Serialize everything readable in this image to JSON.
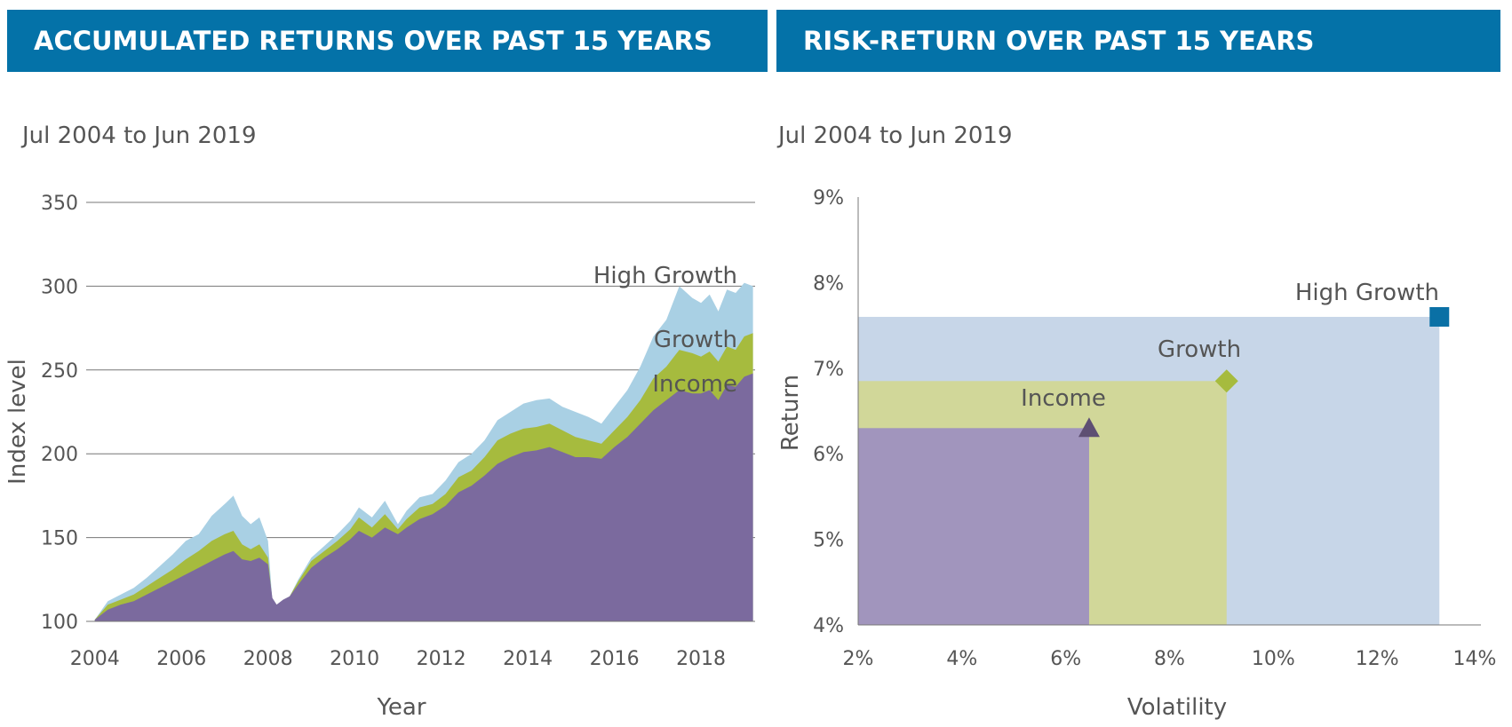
{
  "left_panel": {
    "header": "ACCUMULATED RETURNS OVER PAST 15 YEARS",
    "subtitle": "Jul 2004 to Jun 2019"
  },
  "right_panel": {
    "header": "RISK-RETURN OVER PAST 15 YEARS",
    "subtitle": "Jul 2004 to Jun 2019"
  },
  "colors": {
    "header_bg": "#0472a8",
    "high_growth_area": "#a9d0e4",
    "growth_area": "#a6bb3e",
    "income_area": "#7b6a9e",
    "hg_rect": "#c7d6e8",
    "growth_rect": "#d1d799",
    "income_rect": "#a195bd",
    "hg_marker": "#0a70a5",
    "growth_marker": "#a6bb3e",
    "income_marker": "#5e4f73"
  },
  "chart_data": [
    {
      "type": "area",
      "title": "ACCUMULATED RETURNS OVER PAST 15 YEARS",
      "subtitle": "Jul 2004 to Jun 2019",
      "xlabel": "Year",
      "ylabel": "Index level",
      "xlim": [
        2003.8,
        2019.25
      ],
      "ylim": [
        100,
        350
      ],
      "x_ticks": [
        "2004",
        "2006",
        "2008",
        "2010",
        "2012",
        "2014",
        "2016",
        "2018"
      ],
      "y_ticks": [
        "100",
        "150",
        "200",
        "250",
        "300",
        "350"
      ],
      "grid": "horizontal",
      "x": [
        2004.0,
        2004.3,
        2004.6,
        2004.9,
        2005.2,
        2005.5,
        2005.8,
        2006.1,
        2006.4,
        2006.7,
        2007.0,
        2007.2,
        2007.4,
        2007.6,
        2007.8,
        2008.0,
        2008.1,
        2008.2,
        2008.35,
        2008.5,
        2008.7,
        2009.0,
        2009.3,
        2009.6,
        2009.9,
        2010.1,
        2010.4,
        2010.7,
        2011.0,
        2011.2,
        2011.5,
        2011.8,
        2012.1,
        2012.4,
        2012.7,
        2013.0,
        2013.3,
        2013.6,
        2013.9,
        2014.2,
        2014.5,
        2014.8,
        2015.1,
        2015.4,
        2015.7,
        2016.0,
        2016.3,
        2016.6,
        2016.9,
        2017.2,
        2017.5,
        2017.8,
        2018.0,
        2018.2,
        2018.4,
        2018.6,
        2018.8,
        2019.0,
        2019.2
      ],
      "series": [
        {
          "name": "High Growth",
          "values": [
            101,
            112,
            116,
            120,
            126,
            133,
            140,
            148,
            152,
            163,
            170,
            175,
            163,
            158,
            162,
            148,
            112,
            108,
            112,
            115,
            125,
            138,
            145,
            152,
            160,
            168,
            162,
            172,
            158,
            166,
            174,
            176,
            184,
            195,
            200,
            208,
            220,
            225,
            230,
            232,
            233,
            228,
            225,
            222,
            218,
            228,
            238,
            252,
            270,
            280,
            300,
            293,
            290,
            295,
            285,
            298,
            296,
            302,
            300
          ]
        },
        {
          "name": "Growth",
          "values": [
            101,
            110,
            113,
            116,
            121,
            126,
            131,
            137,
            142,
            148,
            152,
            154,
            146,
            143,
            146,
            138,
            112,
            108,
            112,
            115,
            124,
            136,
            142,
            148,
            155,
            162,
            156,
            164,
            155,
            161,
            168,
            170,
            176,
            186,
            190,
            198,
            208,
            212,
            215,
            216,
            218,
            214,
            210,
            208,
            206,
            214,
            222,
            232,
            245,
            252,
            262,
            260,
            258,
            261,
            255,
            264,
            262,
            270,
            272
          ]
        },
        {
          "name": "Income",
          "values": [
            101,
            107,
            110,
            112,
            116,
            120,
            124,
            128,
            132,
            136,
            140,
            142,
            137,
            136,
            138,
            134,
            114,
            110,
            113,
            115,
            122,
            132,
            138,
            143,
            149,
            154,
            150,
            156,
            152,
            156,
            161,
            164,
            169,
            177,
            181,
            187,
            194,
            198,
            201,
            202,
            204,
            201,
            198,
            198,
            197,
            204,
            210,
            218,
            226,
            232,
            238,
            236,
            236,
            238,
            232,
            241,
            240,
            246,
            248
          ]
        }
      ],
      "annotations": [
        "High Growth",
        "Growth",
        "Income"
      ]
    },
    {
      "type": "scatter",
      "title": "RISK-RETURN OVER PAST 15 YEARS",
      "subtitle": "Jul 2004 to Jun 2019",
      "xlabel": "Volatility",
      "ylabel": "Return",
      "xlim": [
        2,
        14
      ],
      "ylim": [
        4,
        9
      ],
      "x_ticks": [
        "2%",
        "4%",
        "6%",
        "8%",
        "10%",
        "12%",
        "14%"
      ],
      "y_ticks": [
        "4%",
        "5%",
        "6%",
        "7%",
        "8%",
        "9%"
      ],
      "grid": false,
      "points": [
        {
          "name": "High Growth",
          "volatility": 13.2,
          "return": 7.6,
          "marker": "square"
        },
        {
          "name": "Growth",
          "volatility": 9.1,
          "return": 6.85,
          "marker": "diamond"
        },
        {
          "name": "Income",
          "volatility": 6.45,
          "return": 6.3,
          "marker": "triangle"
        }
      ]
    }
  ]
}
